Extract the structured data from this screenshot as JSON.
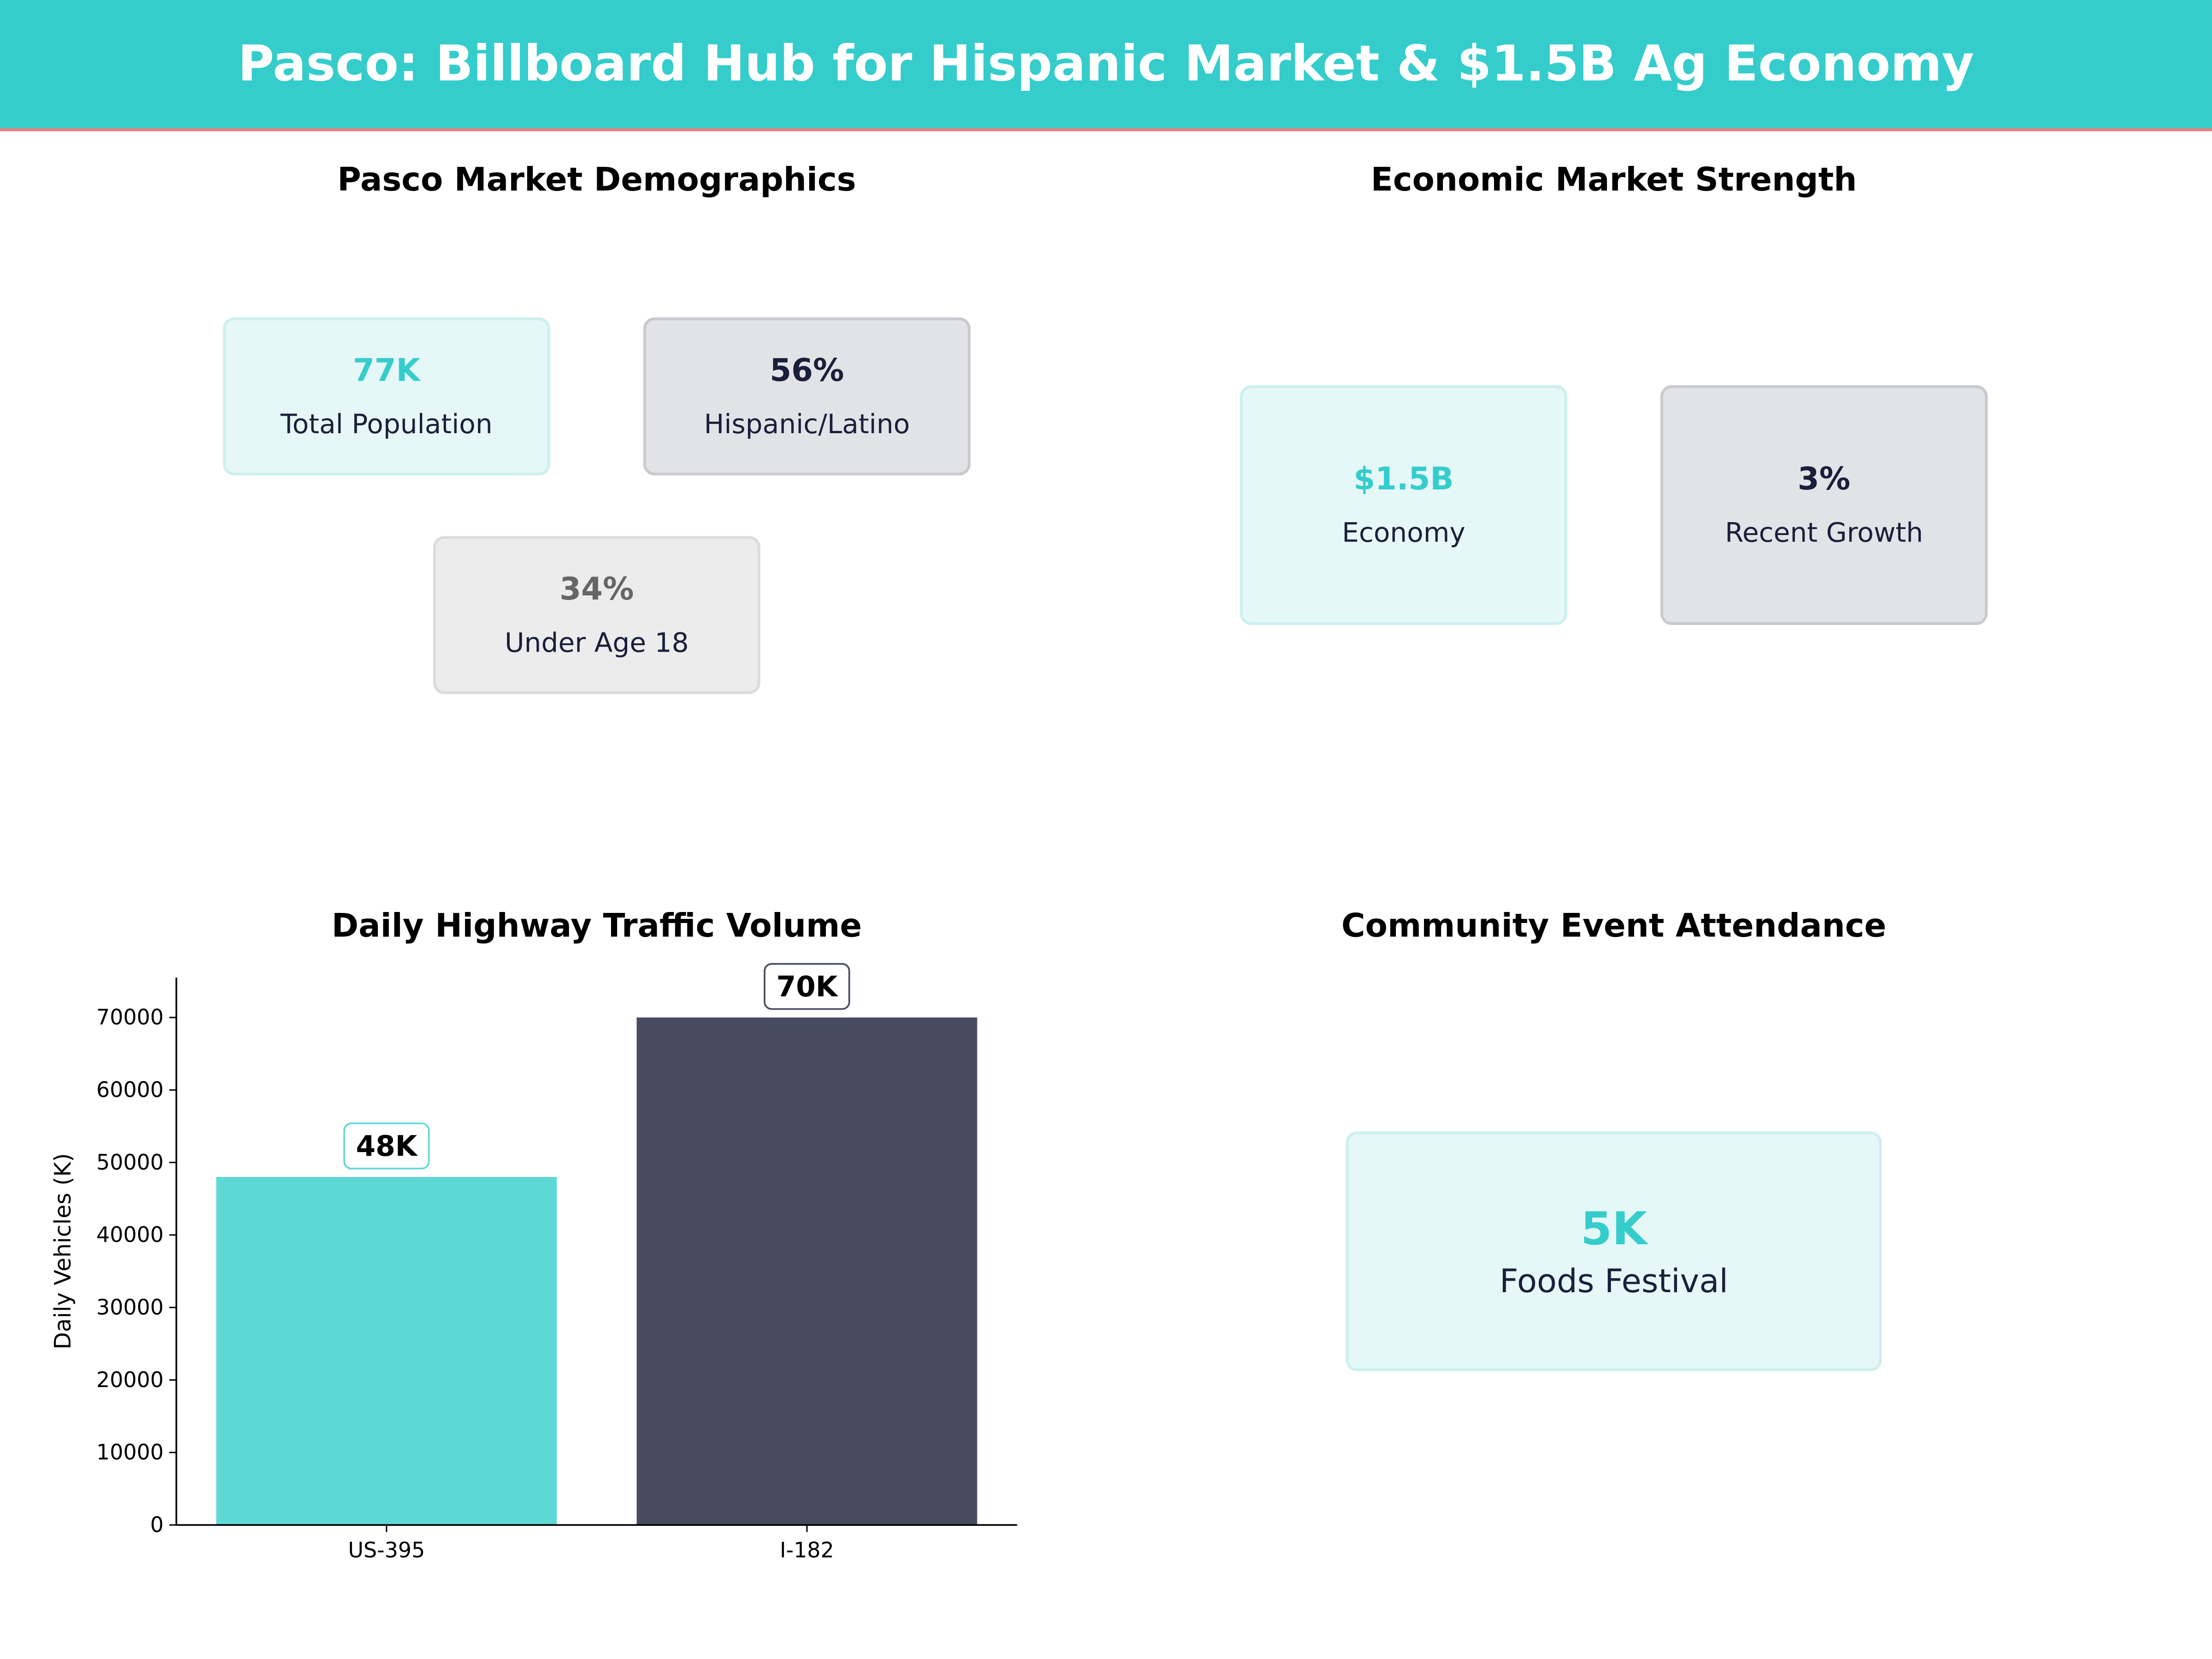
{
  "header": {
    "title": "Pasco: Billboard Hub for Hispanic Market & $1.5B Ag Economy"
  },
  "colors": {
    "accent": "#35cccc",
    "navy": "#464b60",
    "header_border": "#f07a7a"
  },
  "demographics": {
    "title": "Pasco Market Demographics",
    "cards": [
      {
        "value": "77K",
        "label": "Total Population"
      },
      {
        "value": "56%",
        "label": "Hispanic/Latino"
      },
      {
        "value": "34%",
        "label": "Under Age 18"
      }
    ]
  },
  "economy": {
    "title": "Economic Market Strength",
    "cards": [
      {
        "value": "$1.5B",
        "label": "Economy"
      },
      {
        "value": "3%",
        "label": "Recent Growth"
      }
    ]
  },
  "events": {
    "title": "Community Event Attendance",
    "cards": [
      {
        "value": "5K",
        "label": "Foods Festival"
      }
    ]
  },
  "chart_data": {
    "type": "bar",
    "title": "Daily Highway Traffic Volume",
    "xlabel": "",
    "ylabel": "Daily Vehicles (K)",
    "categories": [
      "US-395",
      "I-182"
    ],
    "values": [
      48000,
      70000
    ],
    "data_labels": [
      "48K",
      "70K"
    ],
    "colors": [
      "#5ed8d4",
      "#464b60"
    ],
    "ylim": [
      0,
      75500
    ],
    "yticks": [
      0,
      10000,
      20000,
      30000,
      40000,
      50000,
      60000,
      70000
    ],
    "grid": false
  }
}
